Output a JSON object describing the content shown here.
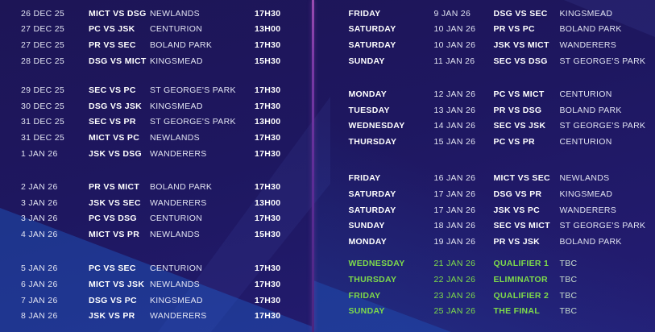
{
  "colors": {
    "background_navy": "#1d1556",
    "background_navy_light": "#241d74",
    "highlight_blue": "#1f66d4",
    "divider_purple": "#5c2c96",
    "divider_purple_bright": "#9a4bb0",
    "playoff_green": "#7edb4a",
    "tbc_muted": "#c9dece",
    "text_regular": "#e2e4f2",
    "text_bold": "#ffffff"
  },
  "left_panel": {
    "blocks": [
      {
        "rows": [
          {
            "date": "26 DEC 25",
            "match": "MICT VS DSG",
            "venue": "NEWLANDS",
            "time": "17H30"
          },
          {
            "date": "27 DEC 25",
            "match": "PC VS JSK",
            "venue": "CENTURION",
            "time": "13H00"
          },
          {
            "date": "27 DEC 25",
            "match": "PR VS SEC",
            "venue": "BOLAND PARK",
            "time": "17H30"
          },
          {
            "date": "28 DEC 25",
            "match": "DSG VS MICT",
            "venue": "KINGSMEAD",
            "time": "15H30"
          }
        ]
      },
      {
        "rows": [
          {
            "date": "29 DEC 25",
            "match": "SEC VS PC",
            "venue": "ST GEORGE'S PARK",
            "time": "17H30"
          },
          {
            "date": "30 DEC 25",
            "match": "DSG VS JSK",
            "venue": "KINGSMEAD",
            "time": "17H30"
          },
          {
            "date": "31 DEC 25",
            "match": "SEC VS PR",
            "venue": "ST GEORGE'S PARK",
            "time": "13H00"
          },
          {
            "date": "31 DEC 25",
            "match": "MICT VS PC",
            "venue": "NEWLANDS",
            "time": "17H30"
          },
          {
            "date": "1 JAN 26",
            "match": "JSK VS DSG",
            "venue": "WANDERERS",
            "time": "17H30"
          }
        ]
      },
      {
        "rows": [
          {
            "date": "2 JAN 26",
            "match": "PR VS MICT",
            "venue": "BOLAND PARK",
            "time": "17H30"
          },
          {
            "date": "3 JAN 26",
            "match": "JSK VS SEC",
            "venue": "WANDERERS",
            "time": "13H00"
          },
          {
            "date": "3 JAN 26",
            "match": "PC VS DSG",
            "venue": "CENTURION",
            "time": "17H30"
          },
          {
            "date": "4 JAN 26",
            "match": "MICT VS PR",
            "venue": "NEWLANDS",
            "time": "15H30"
          }
        ]
      },
      {
        "rows": [
          {
            "date": "5 JAN 26",
            "match": "PC VS SEC",
            "venue": "CENTURION",
            "time": "17H30"
          },
          {
            "date": "6 JAN 26",
            "match": "MICT VS JSK",
            "venue": "NEWLANDS",
            "time": "17H30"
          },
          {
            "date": "7 JAN 26",
            "match": "DSG VS PC",
            "venue": "KINGSMEAD",
            "time": "17H30"
          },
          {
            "date": "8 JAN 26",
            "match": "JSK VS PR",
            "venue": "WANDERERS",
            "time": "17H30"
          }
        ]
      }
    ]
  },
  "right_panel": {
    "blocks": [
      {
        "rows": [
          {
            "day": "FRIDAY",
            "date": "9 JAN 26",
            "match": "DSG VS SEC",
            "venue": "KINGSMEAD"
          },
          {
            "day": "SATURDAY",
            "date": "10 JAN 26",
            "match": "PR VS PC",
            "venue": "BOLAND PARK"
          },
          {
            "day": "SATURDAY",
            "date": "10 JAN 26",
            "match": "JSK VS MICT",
            "venue": "WANDERERS"
          },
          {
            "day": "SUNDAY",
            "date": "11 JAN 26",
            "match": "SEC VS DSG",
            "venue": "ST GEORGE'S PARK"
          }
        ]
      },
      {
        "rows": [
          {
            "day": "MONDAY",
            "date": "12 JAN 26",
            "match": "PC VS MICT",
            "venue": "CENTURION"
          },
          {
            "day": "TUESDAY",
            "date": "13 JAN 26",
            "match": "PR VS DSG",
            "venue": "BOLAND PARK"
          },
          {
            "day": "WEDNESDAY",
            "date": "14 JAN 26",
            "match": "SEC VS JSK",
            "venue": "ST GEORGE'S PARK"
          },
          {
            "day": "THURSDAY",
            "date": "15 JAN 26",
            "match": "PC VS PR",
            "venue": "CENTURION"
          }
        ]
      },
      {
        "rows": [
          {
            "day": "FRIDAY",
            "date": "16 JAN 26",
            "match": "MICT VS SEC",
            "venue": "NEWLANDS"
          },
          {
            "day": "SATURDAY",
            "date": "17 JAN 26",
            "match": "DSG VS PR",
            "venue": "KINGSMEAD"
          },
          {
            "day": "SATURDAY",
            "date": "17 JAN 26",
            "match": "JSK VS PC",
            "venue": "WANDERERS"
          },
          {
            "day": "SUNDAY",
            "date": "18 JAN 26",
            "match": "SEC VS MICT",
            "venue": "ST GEORGE'S PARK"
          },
          {
            "day": "MONDAY",
            "date": "19 JAN 26",
            "match": "PR VS JSK",
            "venue": "BOLAND PARK"
          }
        ]
      },
      {
        "highlight": true,
        "rows": [
          {
            "day": "WEDNESDAY",
            "date": "21 JAN 26",
            "match": "QUALIFIER 1",
            "venue": "TBC"
          },
          {
            "day": "THURSDAY",
            "date": "22 JAN 26",
            "match": "ELIMINATOR",
            "venue": "TBC"
          },
          {
            "day": "FRIDAY",
            "date": "23 JAN 26",
            "match": "QUALIFIER 2",
            "venue": "TBC"
          },
          {
            "day": "SUNDAY",
            "date": "25 JAN 26",
            "match": "THE FINAL",
            "venue": "TBC"
          }
        ]
      }
    ]
  }
}
